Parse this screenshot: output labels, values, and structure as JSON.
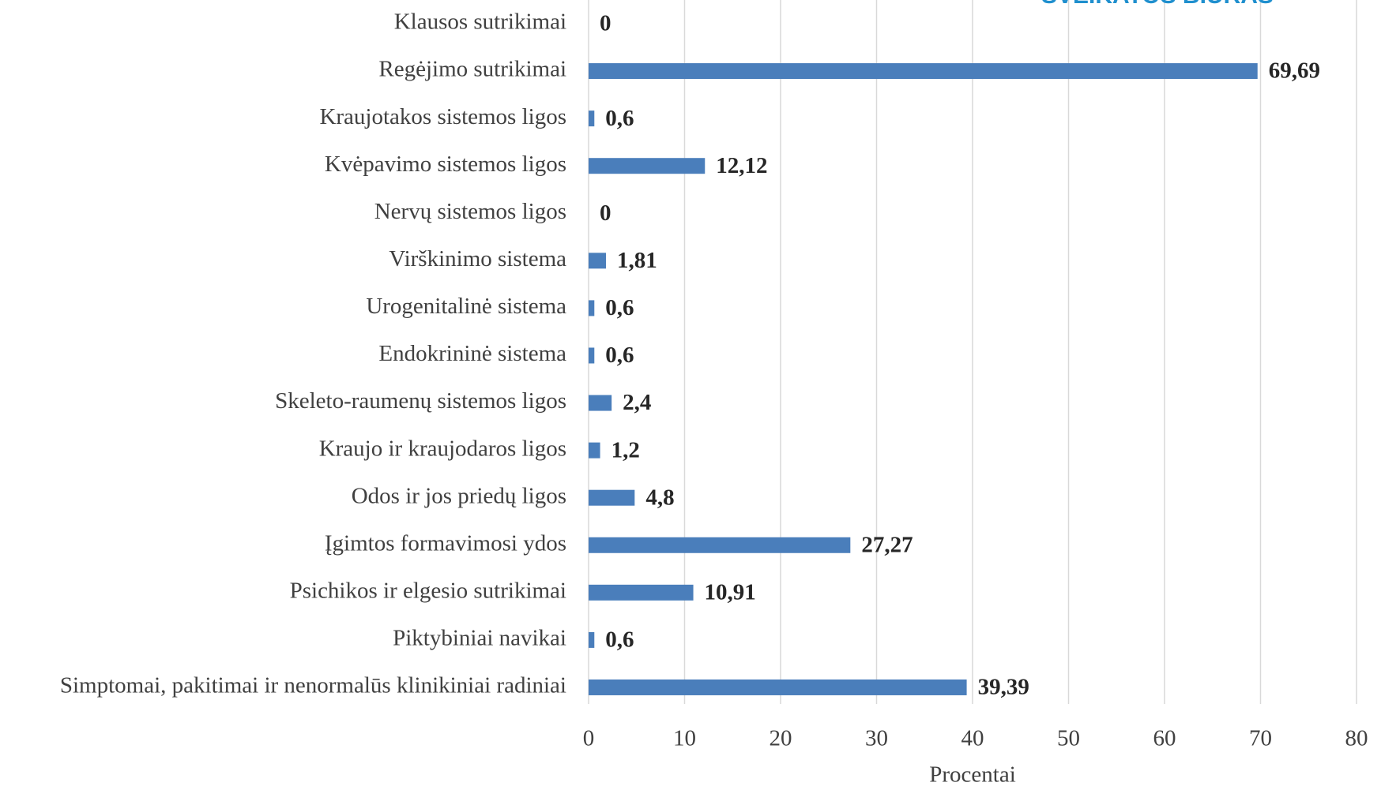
{
  "chart_data": {
    "type": "barh",
    "annotations": [
      "SVEIKATOS BIURAS"
    ],
    "x_label": "Procentai",
    "categories": [
      "Klausos sutrikimai",
      "Regėjimo sutrikimai",
      "Kraujotakos sistemos ligos",
      "Kvėpavimo sistemos ligos",
      "Nervų sistemos ligos",
      "Virškinimo sistema",
      "Urogenitalinė sistema",
      "Endokrininė sistema",
      "Skeleto-raumenų sistemos ligos",
      "Kraujo ir kraujodaros ligos",
      "Odos ir jos priedų ligos",
      "Įgimtos formavimosi ydos",
      "Psichikos ir elgesio sutrikimai",
      "Piktybiniai navikai",
      "Simptomai, pakitimai ir nenormalūs klinikiniai radiniai"
    ],
    "values": [
      0,
      69.69,
      0.6,
      12.12,
      0,
      1.81,
      0.6,
      0.6,
      2.4,
      1.2,
      4.8,
      27.27,
      10.91,
      0.6,
      39.39
    ],
    "value_labels": [
      "0",
      "69,69",
      "0,6",
      "12,12",
      "0",
      "1,81",
      "0,6",
      "0,6",
      "2,4",
      "1,2",
      "4,8",
      "27,27",
      "10,91",
      "0,6",
      "39,39"
    ],
    "color": "#4a7ebb",
    "xlim": [
      0,
      80
    ],
    "xticks": [
      0,
      10,
      20,
      30,
      40,
      50,
      60,
      70,
      80
    ],
    "grid": true
  }
}
